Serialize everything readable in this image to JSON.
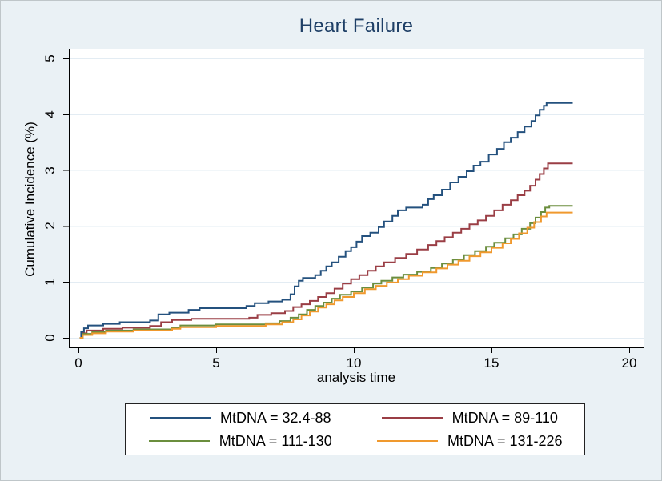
{
  "figure": {
    "background_color": "#eaf1f5"
  },
  "chart_data": {
    "type": "line",
    "subtype": "step-cumulative-incidence",
    "title": "Heart Failure",
    "title_color": "#1e3f66",
    "xlabel": "analysis time",
    "ylabel": "Cumulative Incidence (%)",
    "xlim": [
      0,
      20.9
    ],
    "ylim": [
      0,
      5
    ],
    "x_tick_values": [
      0,
      5,
      10,
      15,
      20
    ],
    "x_tick_labels": [
      "0",
      "5",
      "10",
      "15",
      "20"
    ],
    "y_tick_values": [
      0,
      1,
      2,
      3,
      4,
      5
    ],
    "y_tick_labels": [
      "0",
      "1",
      "2",
      "3",
      "4",
      "5"
    ],
    "grid": "horizontal",
    "gridline_color": "#e3ecf3",
    "axis_color": "#000000",
    "legend_position": "bottom",
    "series": [
      {
        "name": "MtDNA = 32.4-88",
        "color": "#24517e",
        "points": [
          [
            0.05,
            0
          ],
          [
            0.1,
            0.1
          ],
          [
            0.2,
            0.17
          ],
          [
            0.35,
            0.22
          ],
          [
            0.9,
            0.25
          ],
          [
            1.5,
            0.28
          ],
          [
            2.6,
            0.31
          ],
          [
            2.9,
            0.42
          ],
          [
            3.3,
            0.45
          ],
          [
            4.0,
            0.5
          ],
          [
            4.4,
            0.53
          ],
          [
            6.1,
            0.57
          ],
          [
            6.4,
            0.62
          ],
          [
            6.9,
            0.65
          ],
          [
            7.4,
            0.68
          ],
          [
            7.7,
            0.78
          ],
          [
            7.85,
            0.92
          ],
          [
            8.0,
            1.02
          ],
          [
            8.15,
            1.07
          ],
          [
            8.6,
            1.12
          ],
          [
            8.8,
            1.2
          ],
          [
            9.0,
            1.28
          ],
          [
            9.2,
            1.35
          ],
          [
            9.45,
            1.45
          ],
          [
            9.7,
            1.55
          ],
          [
            9.9,
            1.62
          ],
          [
            10.1,
            1.72
          ],
          [
            10.3,
            1.82
          ],
          [
            10.6,
            1.88
          ],
          [
            10.9,
            1.98
          ],
          [
            11.1,
            2.08
          ],
          [
            11.4,
            2.18
          ],
          [
            11.6,
            2.28
          ],
          [
            11.9,
            2.33
          ],
          [
            12.5,
            2.38
          ],
          [
            12.7,
            2.48
          ],
          [
            12.9,
            2.55
          ],
          [
            13.2,
            2.65
          ],
          [
            13.5,
            2.78
          ],
          [
            13.8,
            2.88
          ],
          [
            14.1,
            2.98
          ],
          [
            14.35,
            3.08
          ],
          [
            14.6,
            3.15
          ],
          [
            14.9,
            3.28
          ],
          [
            15.2,
            3.38
          ],
          [
            15.45,
            3.5
          ],
          [
            15.7,
            3.58
          ],
          [
            15.95,
            3.68
          ],
          [
            16.2,
            3.78
          ],
          [
            16.45,
            3.88
          ],
          [
            16.6,
            3.98
          ],
          [
            16.75,
            4.08
          ],
          [
            16.9,
            4.15
          ],
          [
            17.0,
            4.2
          ],
          [
            17.95,
            4.2
          ]
        ]
      },
      {
        "name": "MtDNA = 89-110",
        "color": "#9a3e45",
        "points": [
          [
            0.05,
            0
          ],
          [
            0.15,
            0.08
          ],
          [
            0.3,
            0.13
          ],
          [
            0.9,
            0.16
          ],
          [
            1.6,
            0.18
          ],
          [
            2.6,
            0.21
          ],
          [
            3.0,
            0.28
          ],
          [
            3.4,
            0.32
          ],
          [
            4.1,
            0.34
          ],
          [
            6.2,
            0.36
          ],
          [
            6.5,
            0.41
          ],
          [
            7.0,
            0.44
          ],
          [
            7.5,
            0.48
          ],
          [
            7.8,
            0.55
          ],
          [
            8.1,
            0.6
          ],
          [
            8.4,
            0.66
          ],
          [
            8.7,
            0.73
          ],
          [
            9.0,
            0.8
          ],
          [
            9.3,
            0.88
          ],
          [
            9.6,
            0.97
          ],
          [
            9.9,
            1.05
          ],
          [
            10.2,
            1.12
          ],
          [
            10.5,
            1.2
          ],
          [
            10.8,
            1.28
          ],
          [
            11.1,
            1.35
          ],
          [
            11.5,
            1.43
          ],
          [
            11.9,
            1.5
          ],
          [
            12.3,
            1.58
          ],
          [
            12.7,
            1.66
          ],
          [
            13.0,
            1.73
          ],
          [
            13.3,
            1.8
          ],
          [
            13.6,
            1.88
          ],
          [
            13.9,
            1.95
          ],
          [
            14.2,
            2.03
          ],
          [
            14.5,
            2.1
          ],
          [
            14.8,
            2.18
          ],
          [
            15.1,
            2.28
          ],
          [
            15.4,
            2.38
          ],
          [
            15.7,
            2.46
          ],
          [
            15.95,
            2.55
          ],
          [
            16.2,
            2.63
          ],
          [
            16.4,
            2.72
          ],
          [
            16.6,
            2.83
          ],
          [
            16.75,
            2.93
          ],
          [
            16.9,
            3.03
          ],
          [
            17.05,
            3.12
          ],
          [
            17.95,
            3.12
          ]
        ]
      },
      {
        "name": "MtDNA = 111-130",
        "color": "#6b8e3e",
        "points": [
          [
            0.05,
            0
          ],
          [
            0.15,
            0.07
          ],
          [
            0.5,
            0.1
          ],
          [
            1.0,
            0.13
          ],
          [
            2.0,
            0.15
          ],
          [
            3.4,
            0.18
          ],
          [
            3.7,
            0.22
          ],
          [
            5.0,
            0.24
          ],
          [
            6.8,
            0.26
          ],
          [
            7.3,
            0.3
          ],
          [
            7.7,
            0.36
          ],
          [
            8.0,
            0.42
          ],
          [
            8.3,
            0.5
          ],
          [
            8.6,
            0.57
          ],
          [
            8.9,
            0.63
          ],
          [
            9.2,
            0.7
          ],
          [
            9.5,
            0.77
          ],
          [
            9.9,
            0.83
          ],
          [
            10.3,
            0.9
          ],
          [
            10.7,
            0.97
          ],
          [
            11.0,
            1.02
          ],
          [
            11.4,
            1.08
          ],
          [
            11.8,
            1.13
          ],
          [
            12.3,
            1.18
          ],
          [
            12.8,
            1.25
          ],
          [
            13.2,
            1.33
          ],
          [
            13.6,
            1.4
          ],
          [
            14.0,
            1.48
          ],
          [
            14.4,
            1.55
          ],
          [
            14.8,
            1.63
          ],
          [
            15.1,
            1.7
          ],
          [
            15.5,
            1.78
          ],
          [
            15.8,
            1.85
          ],
          [
            16.1,
            1.95
          ],
          [
            16.4,
            2.05
          ],
          [
            16.6,
            2.15
          ],
          [
            16.8,
            2.25
          ],
          [
            16.95,
            2.33
          ],
          [
            17.1,
            2.36
          ],
          [
            17.95,
            2.36
          ]
        ]
      },
      {
        "name": "MtDNA = 131-226",
        "color": "#f0992e",
        "points": [
          [
            0.05,
            0
          ],
          [
            0.15,
            0.05
          ],
          [
            0.5,
            0.08
          ],
          [
            1.0,
            0.11
          ],
          [
            2.0,
            0.13
          ],
          [
            3.4,
            0.16
          ],
          [
            3.7,
            0.19
          ],
          [
            5.0,
            0.21
          ],
          [
            6.8,
            0.24
          ],
          [
            7.4,
            0.28
          ],
          [
            7.8,
            0.33
          ],
          [
            8.1,
            0.4
          ],
          [
            8.4,
            0.47
          ],
          [
            8.7,
            0.54
          ],
          [
            9.0,
            0.6
          ],
          [
            9.3,
            0.67
          ],
          [
            9.6,
            0.73
          ],
          [
            10.0,
            0.8
          ],
          [
            10.4,
            0.87
          ],
          [
            10.8,
            0.93
          ],
          [
            11.2,
            0.99
          ],
          [
            11.6,
            1.05
          ],
          [
            12.0,
            1.11
          ],
          [
            12.5,
            1.17
          ],
          [
            13.0,
            1.24
          ],
          [
            13.4,
            1.31
          ],
          [
            13.8,
            1.38
          ],
          [
            14.2,
            1.46
          ],
          [
            14.6,
            1.53
          ],
          [
            15.0,
            1.61
          ],
          [
            15.4,
            1.69
          ],
          [
            15.7,
            1.77
          ],
          [
            16.0,
            1.87
          ],
          [
            16.3,
            1.97
          ],
          [
            16.55,
            2.07
          ],
          [
            16.8,
            2.17
          ],
          [
            17.0,
            2.24
          ],
          [
            17.95,
            2.24
          ]
        ]
      }
    ]
  }
}
